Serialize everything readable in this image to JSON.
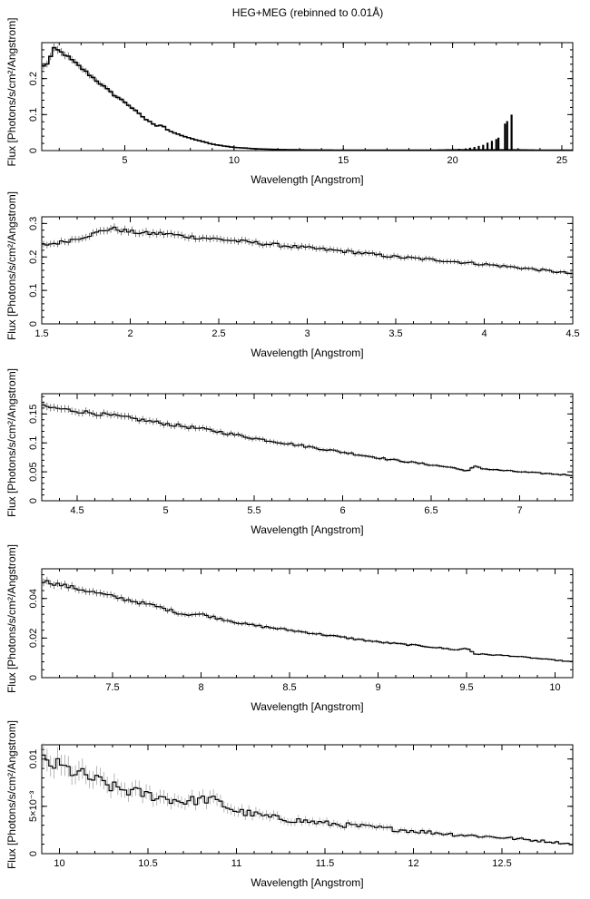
{
  "title": "HEG+MEG (rebinned to 0.01Å)",
  "chart_data": [
    {
      "type": "line",
      "xlabel": "Wavelength [Angstrom]",
      "ylabel": "Flux [Photons/s/cm²/Angstrom]",
      "xlim": [
        1.2,
        25.5
      ],
      "ylim": [
        0,
        0.3
      ],
      "xticks": [
        {
          "v": 5,
          "label": "5"
        },
        {
          "v": 10,
          "label": "10"
        },
        {
          "v": 15,
          "label": "15"
        },
        {
          "v": 20,
          "label": "20"
        },
        {
          "v": 25,
          "label": "25"
        }
      ],
      "yticks": [
        {
          "v": 0,
          "label": "0"
        },
        {
          "v": 0.1,
          "label": "0.1"
        },
        {
          "v": 0.2,
          "label": "0.2"
        }
      ],
      "series": [
        {
          "x": [
            1.2,
            1.3,
            1.4,
            1.5,
            1.6,
            1.7,
            1.8,
            1.9,
            2.0,
            2.2,
            2.5,
            3.0,
            3.5,
            4.0,
            4.5,
            5.0,
            5.5,
            6.0,
            6.5,
            6.7,
            7.0,
            7.5,
            8.0,
            8.5,
            9.0,
            9.5,
            10.0,
            11.0,
            12.0,
            13.0,
            14.0,
            15.0,
            17.0,
            19.0,
            20.0,
            21.0,
            22.0,
            23.0,
            24.0,
            25.5
          ],
          "y": [
            0.23,
            0.235,
            0.24,
            0.245,
            0.26,
            0.275,
            0.285,
            0.28,
            0.275,
            0.27,
            0.255,
            0.23,
            0.205,
            0.18,
            0.155,
            0.135,
            0.11,
            0.085,
            0.068,
            0.072,
            0.055,
            0.044,
            0.034,
            0.026,
            0.018,
            0.013,
            0.009,
            0.005,
            0.003,
            0.002,
            0.0015,
            0.001,
            0.001,
            0.001,
            0.002,
            0.002,
            0.002,
            0.002,
            0.001,
            0.001
          ]
        }
      ],
      "lines": [
        {
          "x": 19.8,
          "y": 0.004
        },
        {
          "x": 20.3,
          "y": 0.005
        },
        {
          "x": 20.6,
          "y": 0.006
        },
        {
          "x": 20.8,
          "y": 0.008
        },
        {
          "x": 21.0,
          "y": 0.01
        },
        {
          "x": 21.2,
          "y": 0.013
        },
        {
          "x": 21.4,
          "y": 0.016
        },
        {
          "x": 21.6,
          "y": 0.022
        },
        {
          "x": 21.8,
          "y": 0.027
        },
        {
          "x": 22.0,
          "y": 0.032
        },
        {
          "x": 22.1,
          "y": 0.036
        },
        {
          "x": 22.4,
          "y": 0.075
        },
        {
          "x": 22.5,
          "y": 0.082
        },
        {
          "x": 22.7,
          "y": 0.1
        }
      ]
    },
    {
      "type": "line",
      "xlabel": "Wavelength [Angstrom]",
      "ylabel": "Flux [Photons/s/cm²/Angstrom]",
      "xlim": [
        1.5,
        4.5
      ],
      "ylim": [
        0,
        0.32
      ],
      "xticks": [
        {
          "v": 1.5,
          "label": "1.5"
        },
        {
          "v": 2,
          "label": "2"
        },
        {
          "v": 2.5,
          "label": "2.5"
        },
        {
          "v": 3,
          "label": "3"
        },
        {
          "v": 3.5,
          "label": "3.5"
        },
        {
          "v": 4,
          "label": "4"
        },
        {
          "v": 4.5,
          "label": "4.5"
        }
      ],
      "yticks": [
        {
          "v": 0,
          "label": "0"
        },
        {
          "v": 0.1,
          "label": "0.1"
        },
        {
          "v": 0.2,
          "label": "0.2"
        },
        {
          "v": 0.3,
          "label": "0.3"
        }
      ],
      "series": [
        {
          "x": [
            1.5,
            1.6,
            1.7,
            1.8,
            1.85,
            1.9,
            1.95,
            2.0,
            2.1,
            2.2,
            2.3,
            2.5,
            2.75,
            3.0,
            3.25,
            3.5,
            3.75,
            4.0,
            4.25,
            4.5
          ],
          "y": [
            0.235,
            0.243,
            0.255,
            0.27,
            0.28,
            0.285,
            0.28,
            0.275,
            0.27,
            0.27,
            0.262,
            0.253,
            0.24,
            0.227,
            0.215,
            0.2,
            0.19,
            0.178,
            0.165,
            0.15
          ]
        }
      ]
    },
    {
      "type": "line",
      "xlabel": "Wavelength [Angstrom]",
      "ylabel": "Flux [Photons/s/cm²/Angstrom]",
      "xlim": [
        4.3,
        7.3
      ],
      "ylim": [
        0,
        0.185
      ],
      "xticks": [
        {
          "v": 4.5,
          "label": "4.5"
        },
        {
          "v": 5,
          "label": "5"
        },
        {
          "v": 5.5,
          "label": "5.5"
        },
        {
          "v": 6,
          "label": "6"
        },
        {
          "v": 6.5,
          "label": "6.5"
        },
        {
          "v": 7,
          "label": "7"
        }
      ],
      "yticks": [
        {
          "v": 0,
          "label": "0"
        },
        {
          "v": 0.05,
          "label": "0.05"
        },
        {
          "v": 0.1,
          "label": "0.1"
        },
        {
          "v": 0.15,
          "label": "0.15"
        }
      ],
      "series": [
        {
          "x": [
            4.3,
            4.5,
            4.75,
            5.0,
            5.25,
            5.5,
            5.75,
            6.0,
            6.25,
            6.5,
            6.65,
            6.7,
            6.75,
            6.8,
            7.0,
            7.3
          ],
          "y": [
            0.163,
            0.155,
            0.145,
            0.133,
            0.122,
            0.108,
            0.096,
            0.084,
            0.072,
            0.062,
            0.056,
            0.05,
            0.06,
            0.055,
            0.05,
            0.044
          ]
        }
      ]
    },
    {
      "type": "line",
      "xlabel": "Wavelength [Angstrom]",
      "ylabel": "Flux [Photons/s/cm²/Angstrom]",
      "xlim": [
        7.1,
        10.1
      ],
      "ylim": [
        0,
        0.055
      ],
      "xticks": [
        {
          "v": 7.5,
          "label": "7.5"
        },
        {
          "v": 8,
          "label": "8"
        },
        {
          "v": 8.5,
          "label": "8.5"
        },
        {
          "v": 9,
          "label": "9"
        },
        {
          "v": 9.5,
          "label": "9.5"
        },
        {
          "v": 10,
          "label": "10"
        }
      ],
      "yticks": [
        {
          "v": 0,
          "label": "0"
        },
        {
          "v": 0.02,
          "label": "0.02"
        },
        {
          "v": 0.04,
          "label": "0.04"
        }
      ],
      "series": [
        {
          "x": [
            7.1,
            7.3,
            7.5,
            7.75,
            7.9,
            8.0,
            8.25,
            8.5,
            8.75,
            9.0,
            9.25,
            9.45,
            9.5,
            9.55,
            9.75,
            10.1
          ],
          "y": [
            0.049,
            0.045,
            0.041,
            0.036,
            0.032,
            0.032,
            0.027,
            0.024,
            0.021,
            0.018,
            0.016,
            0.014,
            0.015,
            0.012,
            0.011,
            0.008
          ]
        }
      ]
    },
    {
      "type": "line",
      "xlabel": "Wavelength [Angstrom]",
      "ylabel": "Flux [Photons/s/cm²/Angstrom]",
      "xlim": [
        9.9,
        12.9
      ],
      "ylim": [
        0,
        0.0115
      ],
      "xticks": [
        {
          "v": 10,
          "label": "10"
        },
        {
          "v": 10.5,
          "label": "10.5"
        },
        {
          "v": 11,
          "label": "11"
        },
        {
          "v": 11.5,
          "label": "11.5"
        },
        {
          "v": 12,
          "label": "12"
        },
        {
          "v": 12.5,
          "label": "12.5"
        }
      ],
      "yticks": [
        {
          "v": 0,
          "label": "0"
        },
        {
          "v": 0.005,
          "label": "5×10⁻³"
        },
        {
          "v": 0.01,
          "label": "0.01"
        }
      ],
      "series": [
        {
          "x": [
            9.9,
            10.0,
            10.1,
            10.2,
            10.3,
            10.5,
            10.7,
            10.85,
            11.0,
            11.2,
            11.5,
            11.75,
            12.0,
            12.25,
            12.5,
            12.75,
            12.9
          ],
          "y": [
            0.0098,
            0.0092,
            0.0085,
            0.0078,
            0.007,
            0.0062,
            0.0055,
            0.0058,
            0.0045,
            0.0038,
            0.0032,
            0.0028,
            0.0024,
            0.002,
            0.0017,
            0.0013,
            0.001
          ]
        }
      ]
    }
  ]
}
